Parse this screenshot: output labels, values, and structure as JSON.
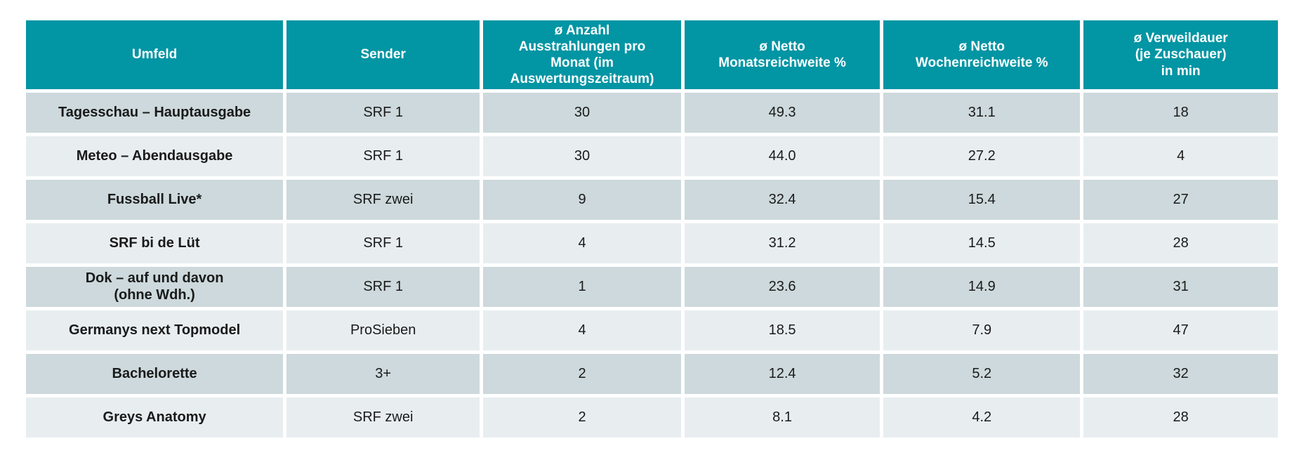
{
  "colors": {
    "header_bg": "#0295A4",
    "header_text": "#ffffff",
    "row_dark_bg": "#CDD9DC",
    "row_light_bg": "#E8EEF0",
    "body_text": "#1a1a1a",
    "page_bg": "#ffffff"
  },
  "table": {
    "columns": [
      {
        "id": "umfeld",
        "label": "Umfeld"
      },
      {
        "id": "sender",
        "label": "Sender"
      },
      {
        "id": "anzahl-ausstrahlungen",
        "label": "ø Anzahl\nAusstrahlungen pro\nMonat (im\nAuswertungszeitraum)"
      },
      {
        "id": "netto-monatsreichweite",
        "label": "ø Netto\nMonatsreichweite %"
      },
      {
        "id": "netto-wochenreichweite",
        "label": "ø Netto\nWochenreichweite %"
      },
      {
        "id": "verweildauer",
        "label": "ø Verweildauer\n(je Zuschauer)\nin min"
      }
    ],
    "rows": [
      {
        "cells": [
          "Tagesschau – Hauptausgabe",
          "SRF 1",
          "30",
          "49.3",
          "31.1",
          "18"
        ]
      },
      {
        "cells": [
          "Meteo – Abendausgabe",
          "SRF 1",
          "30",
          "44.0",
          "27.2",
          "4"
        ]
      },
      {
        "cells": [
          "Fussball Live*",
          "SRF zwei",
          "9",
          "32.4",
          "15.4",
          "27"
        ]
      },
      {
        "cells": [
          "SRF bi de Lüt",
          "SRF 1",
          "4",
          "31.2",
          "14.5",
          "28"
        ]
      },
      {
        "cells": [
          "Dok – auf und davon\n(ohne Wdh.)",
          "SRF 1",
          "1",
          "23.6",
          "14.9",
          "31"
        ]
      },
      {
        "cells": [
          "Germanys next Topmodel",
          "ProSieben",
          "4",
          "18.5",
          "7.9",
          "47"
        ]
      },
      {
        "cells": [
          "Bachelorette",
          "3+",
          "2",
          "12.4",
          "5.2",
          "32"
        ]
      },
      {
        "cells": [
          "Greys Anatomy",
          "SRF zwei",
          "2",
          "8.1",
          "4.2",
          "28"
        ]
      }
    ]
  },
  "chart_data": {
    "type": "table",
    "columns": [
      "Umfeld",
      "Sender",
      "ø Anzahl Ausstrahlungen pro Monat (im Auswertungszeitraum)",
      "ø Netto Monatsreichweite %",
      "ø Netto Wochenreichweite %",
      "ø Verweildauer (je Zuschauer) in min"
    ],
    "rows": [
      [
        "Tagesschau – Hauptausgabe",
        "SRF 1",
        30,
        49.3,
        31.1,
        18
      ],
      [
        "Meteo – Abendausgabe",
        "SRF 1",
        30,
        44.0,
        27.2,
        4
      ],
      [
        "Fussball Live*",
        "SRF zwei",
        9,
        32.4,
        15.4,
        27
      ],
      [
        "SRF bi de Lüt",
        "SRF 1",
        4,
        31.2,
        14.5,
        28
      ],
      [
        "Dok – auf und davon (ohne Wdh.)",
        "SRF 1",
        1,
        23.6,
        14.9,
        31
      ],
      [
        "Germanys next Topmodel",
        "ProSieben",
        4,
        18.5,
        7.9,
        47
      ],
      [
        "Bachelorette",
        "3+",
        2,
        12.4,
        5.2,
        32
      ],
      [
        "Greys Anatomy",
        "SRF zwei",
        2,
        8.1,
        4.2,
        28
      ]
    ]
  }
}
